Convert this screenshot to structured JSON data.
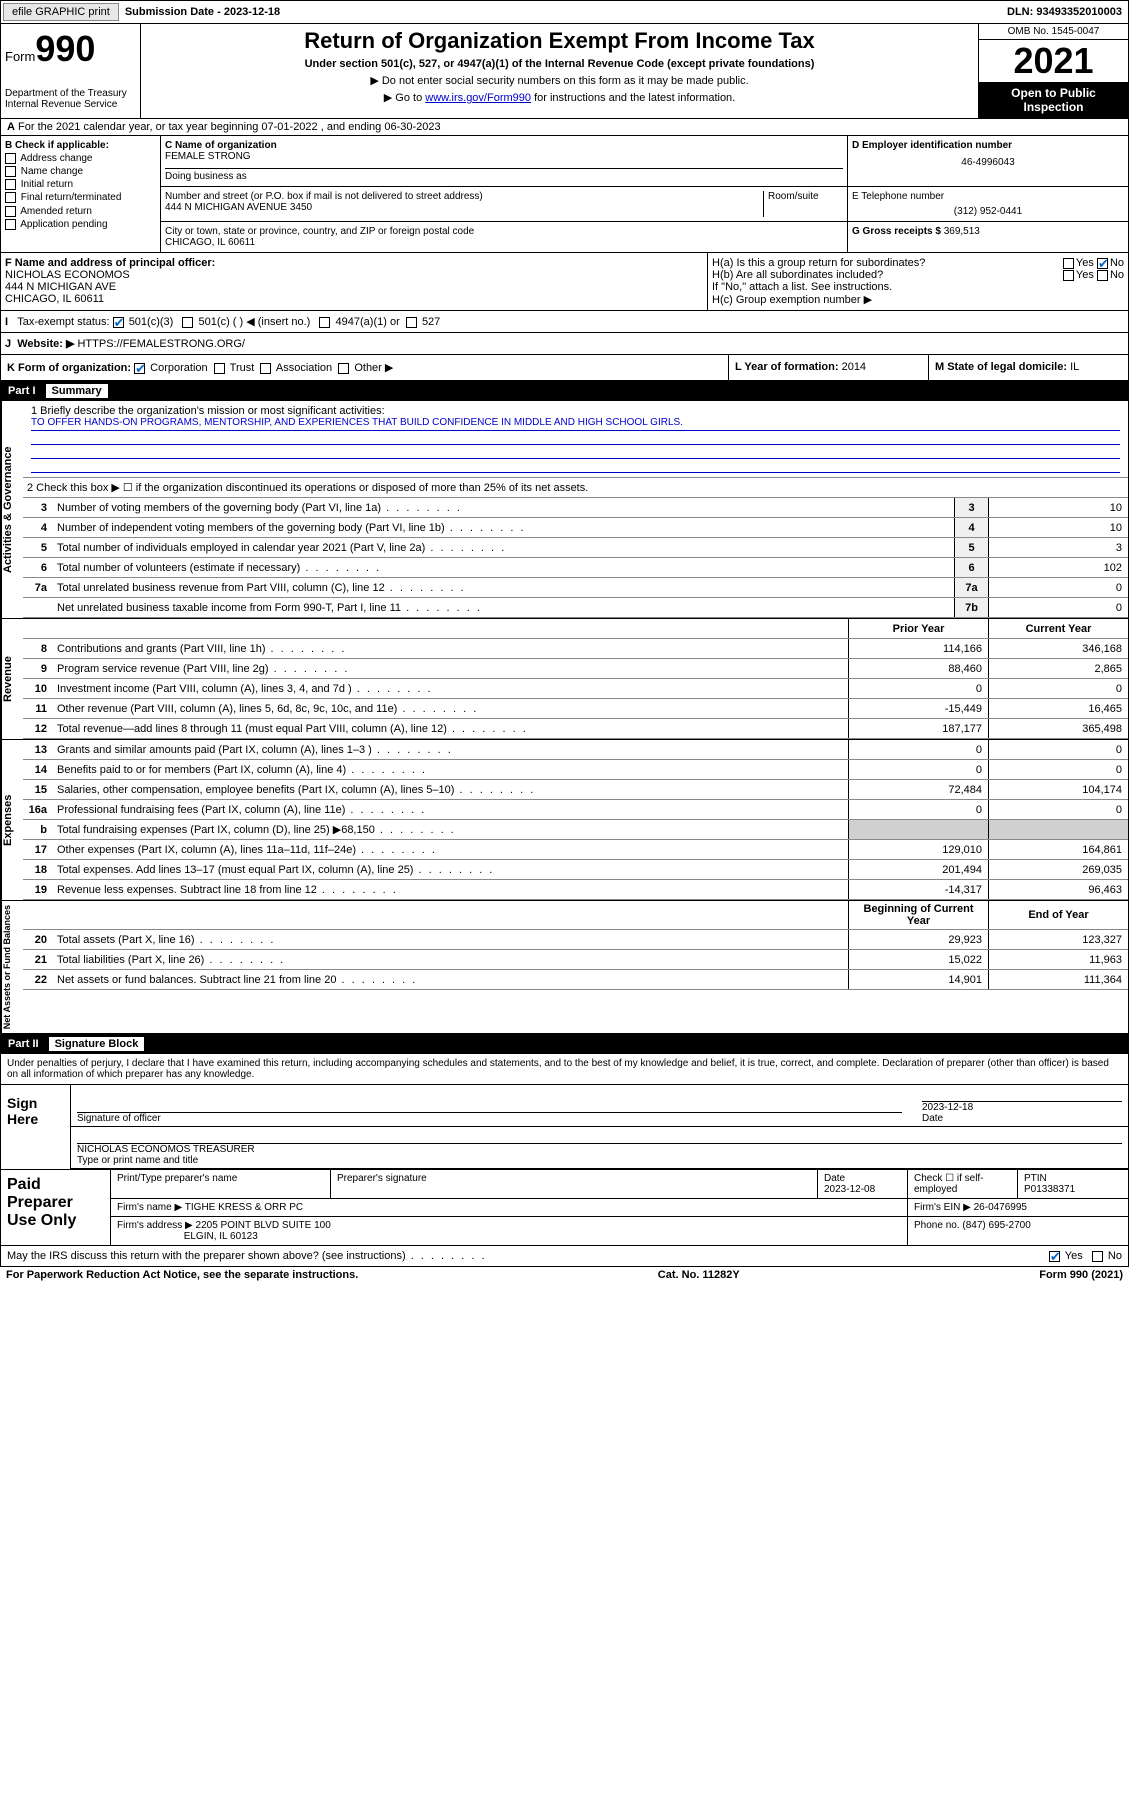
{
  "top": {
    "efile": "efile GRAPHIC print",
    "sub_label": "Submission Date - 2023-12-18",
    "dln": "DLN: 93493352010003"
  },
  "header": {
    "form_word": "Form",
    "form_num": "990",
    "title": "Return of Organization Exempt From Income Tax",
    "subtitle": "Under section 501(c), 527, or 4947(a)(1) of the Internal Revenue Code (except private foundations)",
    "line1": "▶ Do not enter social security numbers on this form as it may be made public.",
    "line2_pre": "▶ Go to ",
    "line2_link": "www.irs.gov/Form990",
    "line2_post": " for instructions and the latest information.",
    "dept": "Department of the Treasury\nInternal Revenue Service",
    "omb": "OMB No. 1545-0047",
    "year": "2021",
    "open": "Open to Public Inspection"
  },
  "A": {
    "text": "For the 2021 calendar year, or tax year beginning 07-01-2022   , and ending 06-30-2023"
  },
  "B": {
    "title": "B Check if applicable:",
    "opts": [
      "Address change",
      "Name change",
      "Initial return",
      "Final return/terminated",
      "Amended return",
      "Application pending"
    ]
  },
  "C": {
    "name_lab": "C Name of organization",
    "name": "FEMALE STRONG",
    "dba_lab": "Doing business as",
    "addr_lab": "Number and street (or P.O. box if mail is not delivered to street address)",
    "room_lab": "Room/suite",
    "addr": "444 N MICHIGAN AVENUE 3450",
    "city_lab": "City or town, state or province, country, and ZIP or foreign postal code",
    "city": "CHICAGO, IL  60611"
  },
  "D": {
    "lab": "D Employer identification number",
    "val": "46-4996043"
  },
  "E": {
    "lab": "E Telephone number",
    "val": "(312) 952-0441"
  },
  "G": {
    "lab": "G Gross receipts $",
    "val": "369,513"
  },
  "F": {
    "lab": "F  Name and address of principal officer:",
    "name": "NICHOLAS ECONOMOS",
    "addr1": "444 N MICHIGAN AVE",
    "addr2": "CHICAGO, IL  60611"
  },
  "H": {
    "a": "H(a)  Is this a group return for subordinates?",
    "b": "H(b)  Are all subordinates included?",
    "note": "If \"No,\" attach a list. See instructions.",
    "c": "H(c)  Group exemption number ▶"
  },
  "I": {
    "lab": "Tax-exempt status:",
    "opts": [
      "501(c)(3)",
      "501(c) (  ) ◀ (insert no.)",
      "4947(a)(1) or",
      "527"
    ]
  },
  "J": {
    "lab": "Website: ▶",
    "val": "HTTPS://FEMALESTRONG.ORG/"
  },
  "K": {
    "lab": "K Form of organization:",
    "opts": [
      "Corporation",
      "Trust",
      "Association",
      "Other ▶"
    ]
  },
  "L": {
    "lab": "L Year of formation:",
    "val": "2014"
  },
  "M": {
    "lab": "M State of legal domicile:",
    "val": "IL"
  },
  "part1": {
    "num": "Part I",
    "title": "Summary"
  },
  "mission": {
    "q": "1   Briefly describe the organization's mission or most significant activities:",
    "text": "TO OFFER HANDS-ON PROGRAMS, MENTORSHIP, AND EXPERIENCES THAT BUILD CONFIDENCE IN MIDDLE AND HIGH SCHOOL GIRLS."
  },
  "line2": "2   Check this box ▶ ☐  if the organization discontinued its operations or disposed of more than 25% of its net assets.",
  "gov_rows": [
    {
      "n": "3",
      "d": "Number of voting members of the governing body (Part VI, line 1a)",
      "b": "3",
      "v": "10"
    },
    {
      "n": "4",
      "d": "Number of independent voting members of the governing body (Part VI, line 1b)",
      "b": "4",
      "v": "10"
    },
    {
      "n": "5",
      "d": "Total number of individuals employed in calendar year 2021 (Part V, line 2a)",
      "b": "5",
      "v": "3"
    },
    {
      "n": "6",
      "d": "Total number of volunteers (estimate if necessary)",
      "b": "6",
      "v": "102"
    },
    {
      "n": "7a",
      "d": "Total unrelated business revenue from Part VIII, column (C), line 12",
      "b": "7a",
      "v": "0"
    },
    {
      "n": "",
      "d": "Net unrelated business taxable income from Form 990-T, Part I, line 11",
      "b": "7b",
      "v": "0"
    }
  ],
  "col_hdr": {
    "py": "Prior Year",
    "cy": "Current Year"
  },
  "rev_rows": [
    {
      "n": "8",
      "d": "Contributions and grants (Part VIII, line 1h)",
      "py": "114,166",
      "cy": "346,168"
    },
    {
      "n": "9",
      "d": "Program service revenue (Part VIII, line 2g)",
      "py": "88,460",
      "cy": "2,865"
    },
    {
      "n": "10",
      "d": "Investment income (Part VIII, column (A), lines 3, 4, and 7d )",
      "py": "0",
      "cy": "0"
    },
    {
      "n": "11",
      "d": "Other revenue (Part VIII, column (A), lines 5, 6d, 8c, 9c, 10c, and 11e)",
      "py": "-15,449",
      "cy": "16,465"
    },
    {
      "n": "12",
      "d": "Total revenue—add lines 8 through 11 (must equal Part VIII, column (A), line 12)",
      "py": "187,177",
      "cy": "365,498"
    }
  ],
  "exp_rows": [
    {
      "n": "13",
      "d": "Grants and similar amounts paid (Part IX, column (A), lines 1–3 )",
      "py": "0",
      "cy": "0"
    },
    {
      "n": "14",
      "d": "Benefits paid to or for members (Part IX, column (A), line 4)",
      "py": "0",
      "cy": "0"
    },
    {
      "n": "15",
      "d": "Salaries, other compensation, employee benefits (Part IX, column (A), lines 5–10)",
      "py": "72,484",
      "cy": "104,174"
    },
    {
      "n": "16a",
      "d": "Professional fundraising fees (Part IX, column (A), line 11e)",
      "py": "0",
      "cy": "0"
    },
    {
      "n": "b",
      "d": "Total fundraising expenses (Part IX, column (D), line 25) ▶68,150",
      "py": "",
      "cy": "",
      "shade": true
    },
    {
      "n": "17",
      "d": "Other expenses (Part IX, column (A), lines 11a–11d, 11f–24e)",
      "py": "129,010",
      "cy": "164,861"
    },
    {
      "n": "18",
      "d": "Total expenses. Add lines 13–17 (must equal Part IX, column (A), line 25)",
      "py": "201,494",
      "cy": "269,035"
    },
    {
      "n": "19",
      "d": "Revenue less expenses. Subtract line 18 from line 12",
      "py": "-14,317",
      "cy": "96,463"
    }
  ],
  "na_hdr": {
    "py": "Beginning of Current Year",
    "cy": "End of Year"
  },
  "na_rows": [
    {
      "n": "20",
      "d": "Total assets (Part X, line 16)",
      "py": "29,923",
      "cy": "123,327"
    },
    {
      "n": "21",
      "d": "Total liabilities (Part X, line 26)",
      "py": "15,022",
      "cy": "11,963"
    },
    {
      "n": "22",
      "d": "Net assets or fund balances. Subtract line 21 from line 20",
      "py": "14,901",
      "cy": "111,364"
    }
  ],
  "part2": {
    "num": "Part II",
    "title": "Signature Block"
  },
  "sig_intro": "Under penalties of perjury, I declare that I have examined this return, including accompanying schedules and statements, and to the best of my knowledge and belief, it is true, correct, and complete. Declaration of preparer (other than officer) is based on all information of which preparer has any knowledge.",
  "sign": {
    "left": "Sign Here",
    "sig_lab": "Signature of officer",
    "date_lab": "Date",
    "date": "2023-12-18",
    "name": "NICHOLAS ECONOMOS  TREASURER",
    "name_lab": "Type or print name and title"
  },
  "paid": {
    "left": "Paid Preparer Use Only",
    "h1": "Print/Type preparer's name",
    "h2": "Preparer's signature",
    "h3": "Date",
    "h3v": "2023-12-08",
    "h4": "Check ☐ if self-employed",
    "h5": "PTIN",
    "h5v": "P01338371",
    "firm_lab": "Firm's name    ▶",
    "firm": "TIGHE KRESS & ORR PC",
    "ein_lab": "Firm's EIN ▶",
    "ein": "26-0476995",
    "addr_lab": "Firm's address ▶",
    "addr1": "2205 POINT BLVD SUITE 100",
    "addr2": "ELGIN, IL  60123",
    "phone_lab": "Phone no.",
    "phone": "(847) 695-2700"
  },
  "may_discuss": "May the IRS discuss this return with the preparer shown above? (see instructions)",
  "footer": {
    "pra": "For Paperwork Reduction Act Notice, see the separate instructions.",
    "cat": "Cat. No. 11282Y",
    "form": "Form 990 (2021)"
  },
  "vtabs": {
    "gov": "Activities & Governance",
    "rev": "Revenue",
    "exp": "Expenses",
    "na": "Net Assets or Fund Balances"
  }
}
